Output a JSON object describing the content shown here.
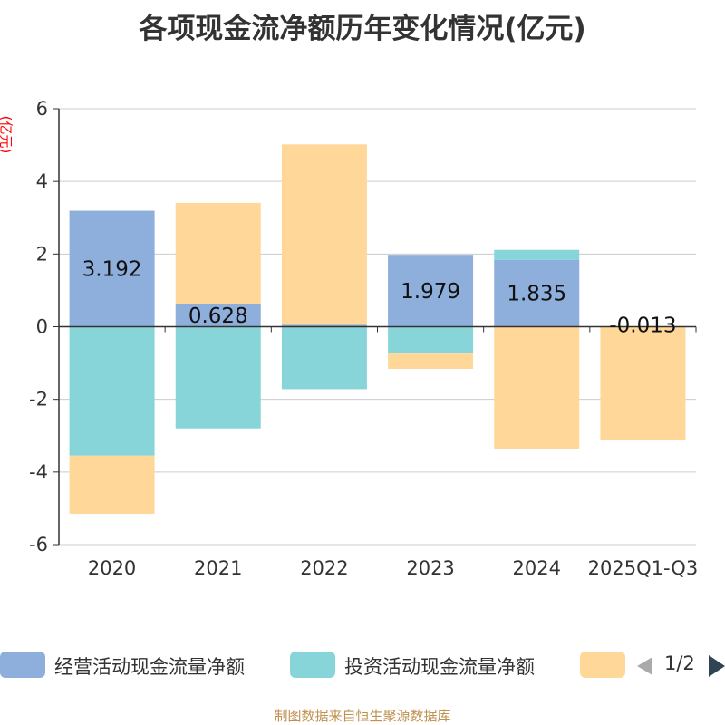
{
  "chart_data": {
    "type": "bar",
    "stacked": true,
    "title": "各项现金流净额历年变化情况(亿元)",
    "ylabel": "(亿元)",
    "categories": [
      "2020",
      "2021",
      "2022",
      "2023",
      "2024",
      "2025Q1-Q3"
    ],
    "ylim": [
      -6,
      6
    ],
    "yticks": [
      6,
      4,
      2,
      0,
      -2,
      -4,
      -6
    ],
    "grid": true,
    "series": [
      {
        "name": "经营活动现金流量净额",
        "color": "#8eaedb",
        "values": [
          3.192,
          0.628,
          0.05,
          1.979,
          1.835,
          -0.013
        ],
        "labels": [
          "3.192",
          "0.628",
          "",
          "1.979",
          "1.835",
          "-0.013"
        ]
      },
      {
        "name": "投资活动现金流量净额",
        "color": "#87d5d9",
        "values": [
          -3.55,
          -2.8,
          -1.72,
          -0.74,
          0.28,
          0.0
        ]
      },
      {
        "name": "",
        "color": "#ffd899",
        "values": [
          -1.6,
          2.78,
          4.97,
          -0.42,
          -3.36,
          -3.1
        ]
      }
    ],
    "legend": {
      "position": "bottom",
      "page": "1/2"
    },
    "source": "制图数据来自恒生聚源数据库"
  }
}
